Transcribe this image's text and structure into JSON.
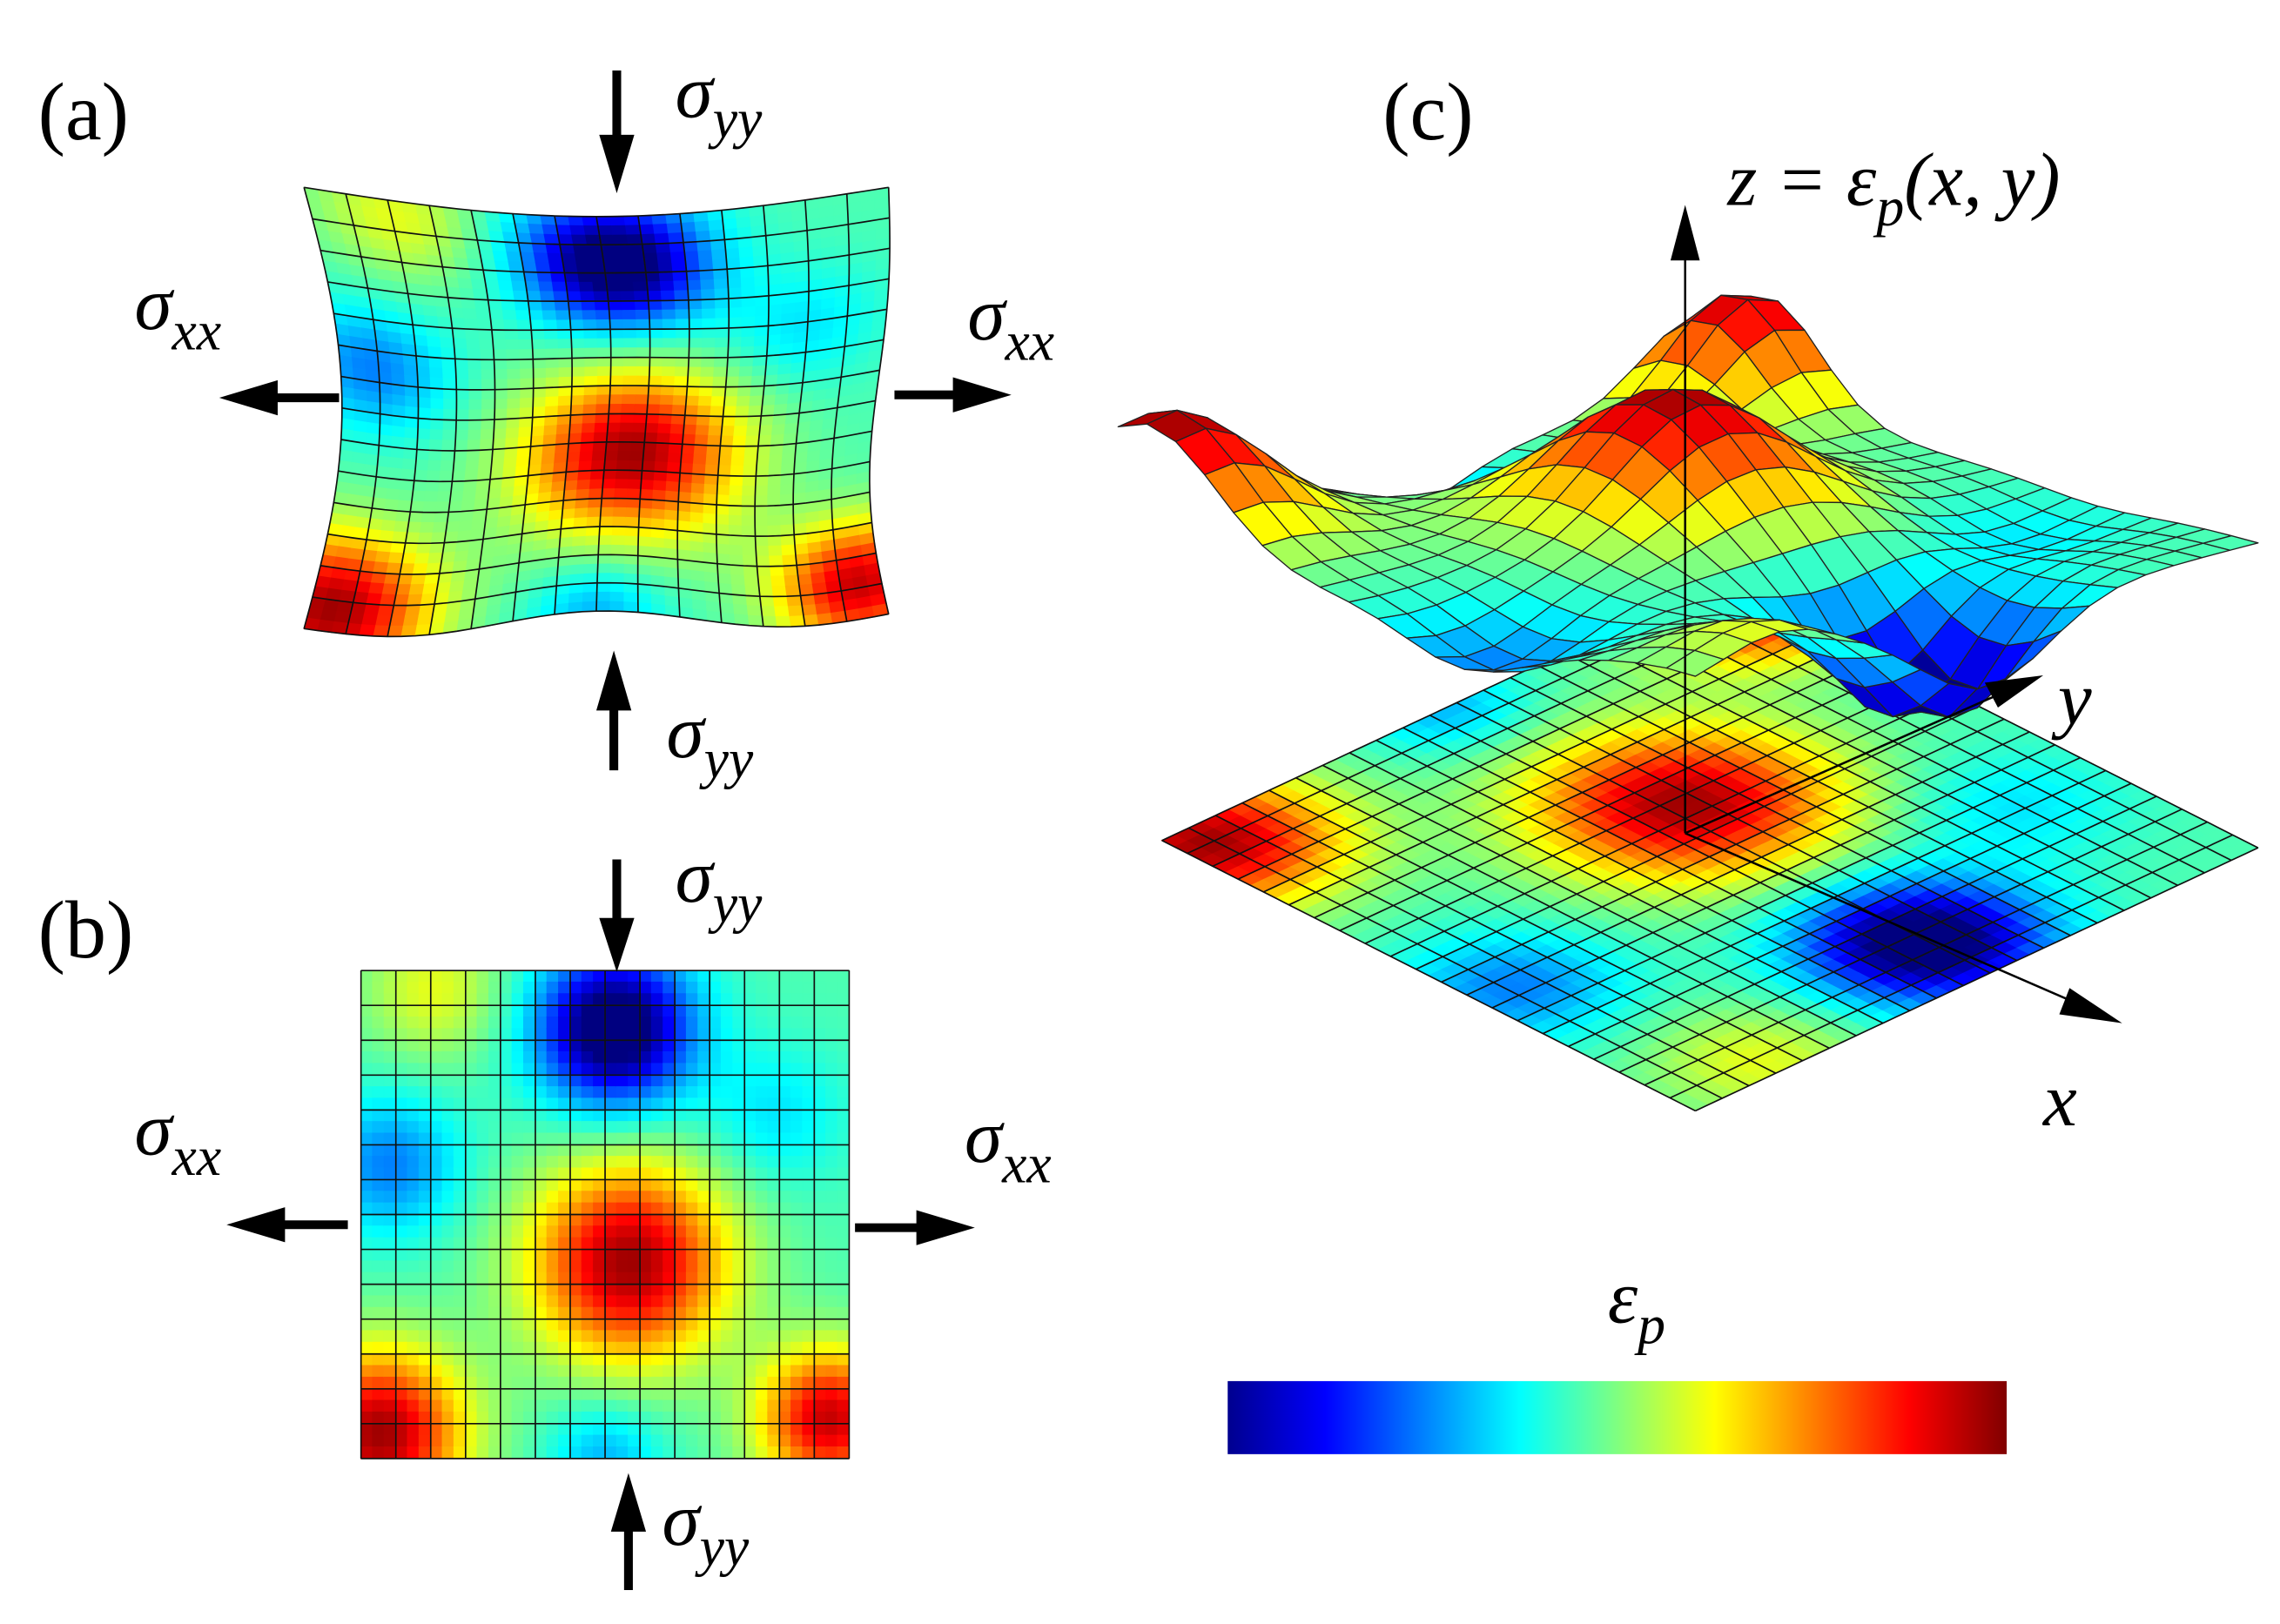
{
  "panels": {
    "a": {
      "label": "(a)",
      "sigma_yy_top": {
        "symbol": "σ",
        "subscript": "yy"
      },
      "sigma_xx_left": {
        "symbol": "σ",
        "subscript": "xx"
      },
      "sigma_xx_right": {
        "symbol": "σ",
        "subscript": "xx"
      },
      "sigma_yy_bottom": {
        "symbol": "σ",
        "subscript": "yy"
      }
    },
    "b": {
      "label": "(b)",
      "sigma_yy_top": {
        "symbol": "σ",
        "subscript": "yy"
      },
      "sigma_xx_left": {
        "symbol": "σ",
        "subscript": "xx"
      },
      "sigma_xx_right": {
        "symbol": "σ",
        "subscript": "xx"
      },
      "sigma_yy_bottom": {
        "symbol": "σ",
        "subscript": "yy"
      }
    },
    "c": {
      "label": "(c)",
      "surface_label": {
        "prefix": "z = ε",
        "subscript": "p",
        "suffix": "(x, y)"
      },
      "x_axis": "x",
      "y_axis": "y"
    }
  },
  "colorbar": {
    "symbol": "ε",
    "subscript": "p"
  }
}
